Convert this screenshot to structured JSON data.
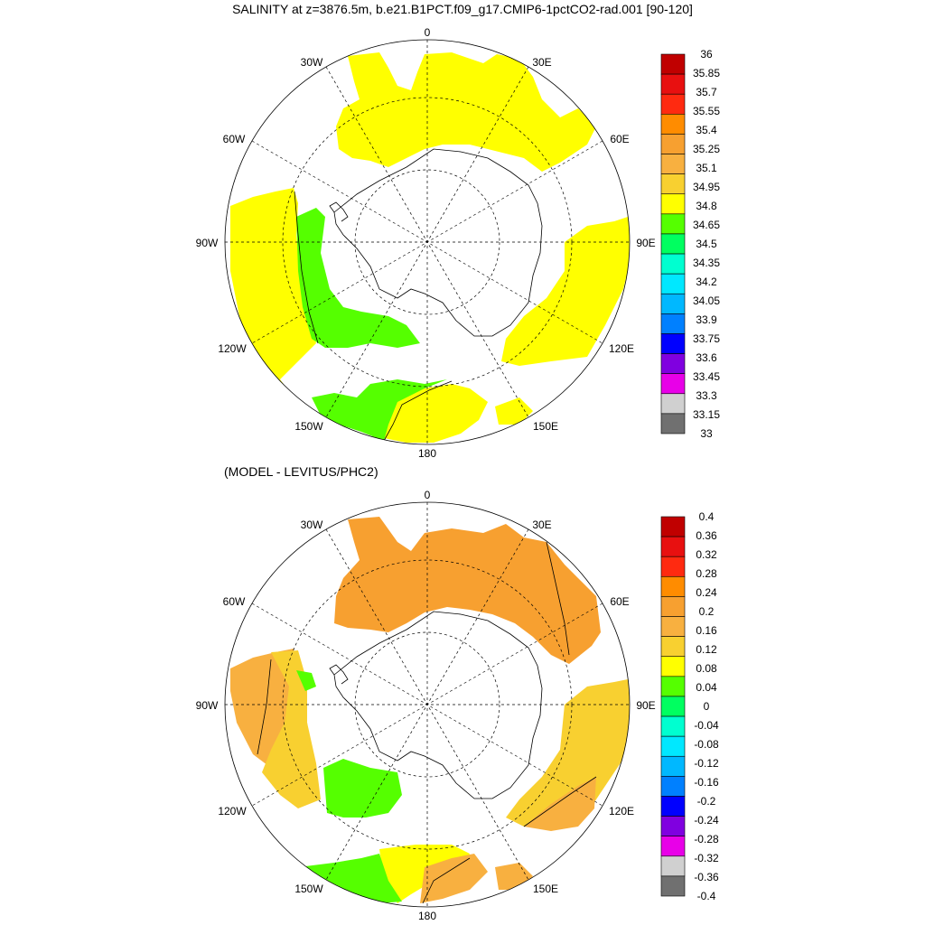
{
  "title": "SALINITY at z=3876.5m, b.e21.B1PCT.f09_g17.CMIP6-1pctCO2-rad.001 [90-120]",
  "subtitle": "(MODEL - LEVITUS/PHC2)",
  "longitude_labels": [
    "0",
    "30E",
    "60E",
    "90E",
    "120E",
    "150E",
    "180",
    "150W",
    "120W",
    "90W",
    "60W",
    "30W"
  ],
  "top_colorbar": {
    "labels": [
      "36",
      "35.85",
      "35.7",
      "35.55",
      "35.4",
      "35.25",
      "35.1",
      "34.95",
      "34.8",
      "34.65",
      "34.5",
      "34.35",
      "34.2",
      "34.05",
      "33.9",
      "33.75",
      "33.6",
      "33.45",
      "33.3",
      "33.15",
      "33"
    ],
    "colors": [
      "#c00000",
      "#e81010",
      "#ff2a10",
      "#ff8c00",
      "#f7a030",
      "#f8b040",
      "#f8d030",
      "#ffff00",
      "#55ff00",
      "#00ff60",
      "#00ffd0",
      "#00e8ff",
      "#00b8ff",
      "#0080ff",
      "#0000ff",
      "#8000e0",
      "#e800e8",
      "#d0d0d0",
      "#707070"
    ]
  },
  "bottom_colorbar": {
    "labels": [
      "0.4",
      "0.36",
      "0.32",
      "0.28",
      "0.24",
      "0.2",
      "0.16",
      "0.12",
      "0.08",
      "0.04",
      "0",
      "-0.04",
      "-0.08",
      "-0.12",
      "-0.16",
      "-0.2",
      "-0.24",
      "-0.28",
      "-0.32",
      "-0.36",
      "-0.4"
    ],
    "colors": [
      "#c00000",
      "#e81010",
      "#ff2a10",
      "#ff8c00",
      "#f7a030",
      "#f8b040",
      "#f8d030",
      "#ffff00",
      "#55ff00",
      "#00ff60",
      "#00ffd0",
      "#00e8ff",
      "#00b8ff",
      "#0080ff",
      "#0000ff",
      "#8000e0",
      "#e800e8",
      "#d0d0d0",
      "#707070"
    ]
  }
}
